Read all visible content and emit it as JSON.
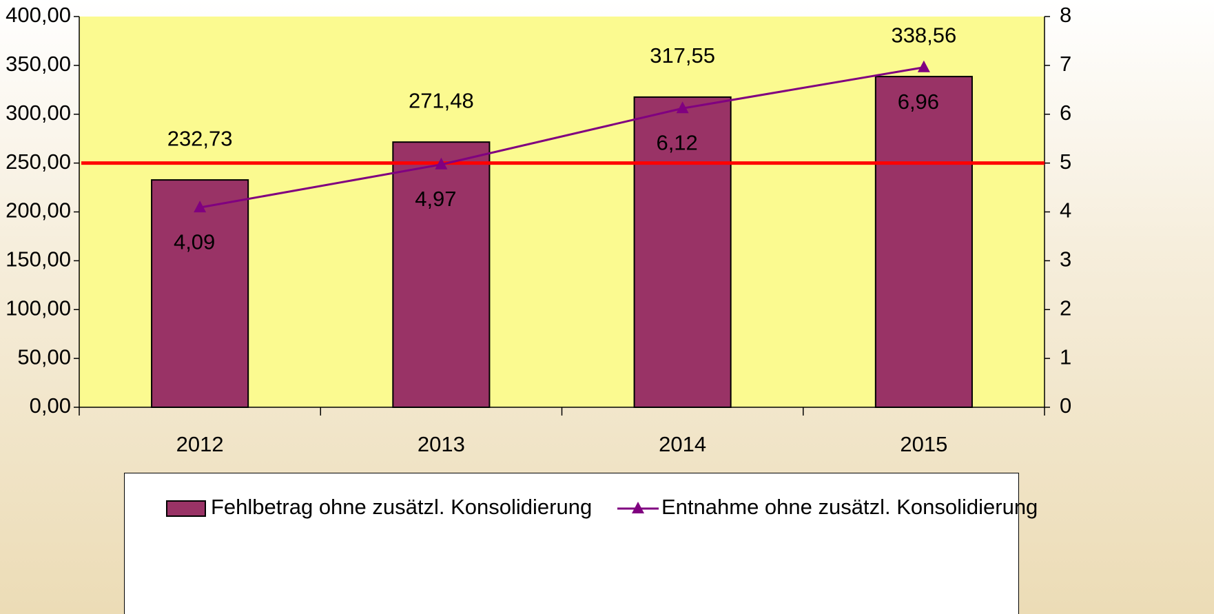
{
  "chart_data": {
    "type": "bar",
    "categories": [
      "2012",
      "2013",
      "2014",
      "2015"
    ],
    "series": [
      {
        "name": "Fehlbetrag ohne zusätzl. Konsolidierung",
        "type": "bar",
        "color": "#993366",
        "values": [
          232.73,
          271.48,
          317.55,
          338.56
        ],
        "value_labels": [
          "232,73",
          "271,48",
          "317,55",
          "338,56"
        ]
      },
      {
        "name": "Entnahme ohne zusätzl. Konsolidierung",
        "type": "line",
        "axis": "y2",
        "color": "#800080",
        "values": [
          4.09,
          4.97,
          6.12,
          6.96
        ],
        "value_labels": [
          "4,09",
          "4,97",
          "6,12",
          "6,96"
        ]
      }
    ],
    "ylim": [
      0,
      400
    ],
    "yticks": [
      {
        "value": 0,
        "label": "0,00"
      },
      {
        "value": 50,
        "label": "50,00"
      },
      {
        "value": 100,
        "label": "100,00"
      },
      {
        "value": 150,
        "label": "150,00"
      },
      {
        "value": 200,
        "label": "200,00"
      },
      {
        "value": 250,
        "label": "250,00"
      },
      {
        "value": 300,
        "label": "300,00"
      },
      {
        "value": 350,
        "label": "350,00"
      },
      {
        "value": 400,
        "label": "400,00"
      }
    ],
    "y2lim": [
      0,
      8
    ],
    "y2ticks": [
      0,
      1,
      2,
      3,
      4,
      5,
      6,
      7,
      8
    ],
    "reference_line": {
      "value": 5,
      "axis": "y2",
      "color": "#ff0000"
    },
    "legend": "bottom"
  }
}
